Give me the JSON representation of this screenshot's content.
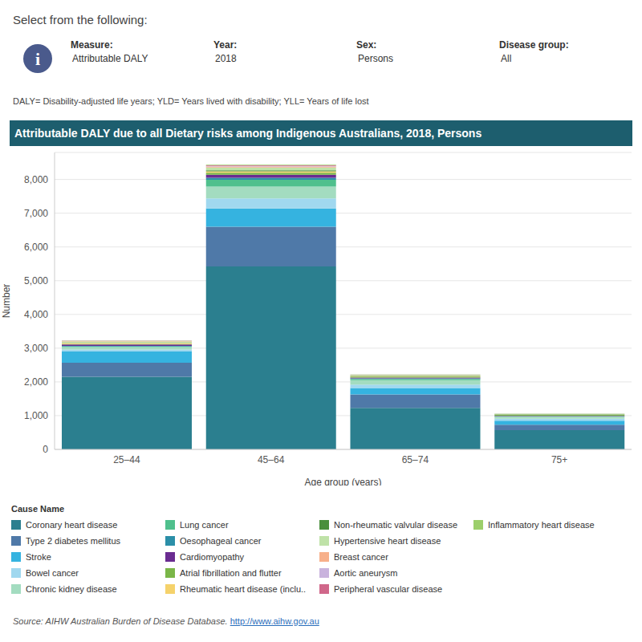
{
  "header": {
    "prompt": "Select from the following:",
    "filters": [
      {
        "label": "Measure:",
        "value": "Attributable DALY"
      },
      {
        "label": "Year:",
        "value": "2018"
      },
      {
        "label": "Sex:",
        "value": "Persons"
      },
      {
        "label": "Disease group:",
        "value": "All"
      }
    ],
    "note": "DALY= Disability-adjusted life years; YLD= Years lived with disability; YLL= Years of life lost"
  },
  "chart_data": {
    "type": "bar",
    "title": "Attributable DALY due to all Dietary risks among Indigenous Australians, 2018, Persons",
    "x_label": "Age group (years)",
    "y_label": "Number",
    "categories": [
      "25–44",
      "45–64",
      "65–74",
      "75+"
    ],
    "stacked": true,
    "grid": true,
    "legend": "bottom",
    "legend_title": "Cause Name",
    "ylim": [
      0,
      8800
    ],
    "yticks": [
      0,
      {
        "value": 1000,
        "label": "1,000"
      },
      {
        "value": 2000,
        "label": "2,000"
      },
      {
        "value": 3000,
        "label": "3,000"
      },
      {
        "value": 4000,
        "label": "4,000"
      },
      {
        "value": 5000,
        "label": "5,000"
      },
      {
        "value": 6000,
        "label": "6,000"
      },
      {
        "value": 7000,
        "label": "7,000"
      },
      {
        "value": 8000,
        "label": "8,000"
      }
    ],
    "series": [
      {
        "name": "Coronary heart disease",
        "color": "#2b7f8f",
        "values": [
          2150,
          5420,
          1230,
          570
        ]
      },
      {
        "name": "Type 2 diabetes mellitus",
        "color": "#4f79a8",
        "values": [
          420,
          1180,
          400,
          160
        ]
      },
      {
        "name": "Stroke",
        "color": "#35b3e0",
        "values": [
          330,
          540,
          190,
          120
        ]
      },
      {
        "name": "Bowel cancer",
        "color": "#a0d8ef",
        "values": [
          60,
          300,
          100,
          60
        ]
      },
      {
        "name": "Chronic kidney disease",
        "color": "#a3dcc0",
        "values": [
          70,
          350,
          130,
          60
        ]
      },
      {
        "name": "Lung cancer",
        "color": "#4fc08d",
        "values": [
          20,
          200,
          40,
          15
        ]
      },
      {
        "name": "Oesophageal cancer",
        "color": "#2b8fa8",
        "values": [
          20,
          60,
          15,
          5
        ]
      },
      {
        "name": "Cardiomyopathy",
        "color": "#6a2c91",
        "values": [
          40,
          90,
          25,
          10
        ]
      },
      {
        "name": "Atrial fibrillation and flutter",
        "color": "#7ab648",
        "values": [
          10,
          60,
          30,
          25
        ]
      },
      {
        "name": "Rheumatic heart disease (inclu..",
        "color": "#f5d26b",
        "values": [
          30,
          40,
          10,
          5
        ]
      },
      {
        "name": "Non-rheumatic valvular disease",
        "color": "#4a8f3c",
        "values": [
          10,
          30,
          15,
          10
        ]
      },
      {
        "name": "Hypertensive heart disease",
        "color": "#bfe2a8",
        "values": [
          40,
          85,
          20,
          10
        ]
      },
      {
        "name": "Breast cancer",
        "color": "#f7b08a",
        "values": [
          10,
          30,
          5,
          3
        ]
      },
      {
        "name": "Aortic aneurysm",
        "color": "#c9b3dd",
        "values": [
          5,
          15,
          5,
          5
        ]
      },
      {
        "name": "Peripheral vascular disease",
        "color": "#d0678a",
        "values": [
          5,
          20,
          5,
          2
        ]
      },
      {
        "name": "Inflammatory heart disease",
        "color": "#9ccf6b",
        "values": [
          10,
          20,
          5,
          5
        ]
      }
    ]
  },
  "source": {
    "label": "Source:",
    "text": "AIHW Australian Burden of Disease Database.",
    "link": "http://www.aihw.gov.au"
  }
}
